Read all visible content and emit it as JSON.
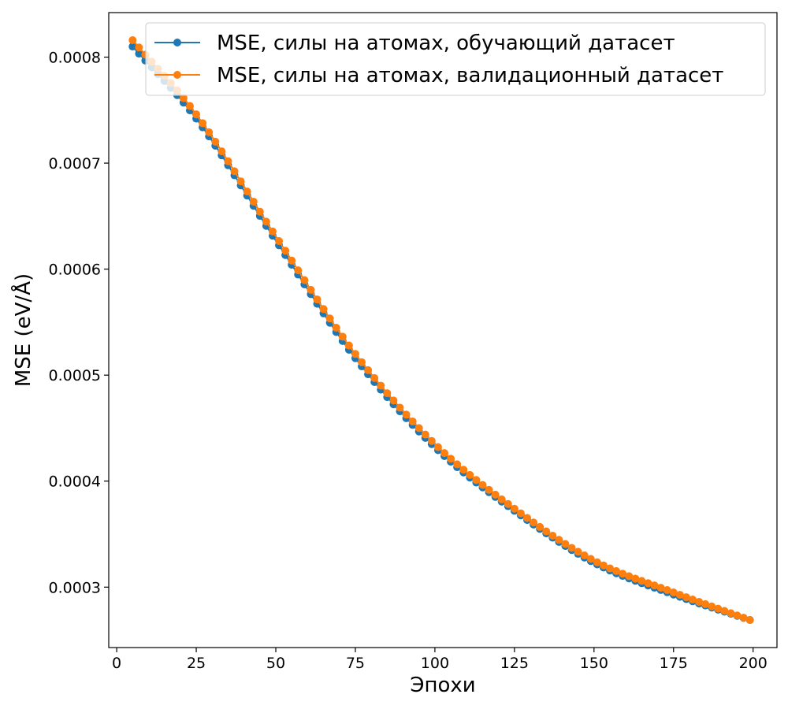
{
  "chart_data": {
    "type": "line",
    "title": "",
    "xlabel": "Эпохи",
    "ylabel": "MSE (eV/Å)",
    "xlim": [
      -2.5,
      207.5
    ],
    "ylim": [
      0.000243,
      0.000842
    ],
    "xticks": [
      0,
      25,
      50,
      75,
      100,
      125,
      150,
      175,
      200
    ],
    "yticks": [
      0.0003,
      0.0004,
      0.0005,
      0.0006,
      0.0007,
      0.0008
    ],
    "ytick_labels": [
      "0.0003",
      "0.0004",
      "0.0005",
      "0.0006",
      "0.0007",
      "0.0008"
    ],
    "grid": false,
    "legend_position": "top-right",
    "x_start": 5,
    "x_end": 199,
    "x_step": 2,
    "series": [
      {
        "name": "MSE, силы на атомах, обучающий датасет",
        "color": "#1f77b4",
        "anchors": [
          [
            5,
            0.00081
          ],
          [
            25,
            0.000742
          ],
          [
            50,
            0.000627
          ],
          [
            75,
            0.000516
          ],
          [
            100,
            0.000432
          ],
          [
            125,
            0.000372
          ],
          [
            150,
            0.000323
          ],
          [
            175,
            0.000293
          ],
          [
            199,
            0.000269
          ]
        ]
      },
      {
        "name": "MSE, силы на атомах, валидационный датасет",
        "color": "#ff7f0e",
        "anchors": [
          [
            5,
            0.000816
          ],
          [
            25,
            0.000746
          ],
          [
            50,
            0.000631
          ],
          [
            75,
            0.00052
          ],
          [
            100,
            0.000435
          ],
          [
            125,
            0.000374
          ],
          [
            150,
            0.000325
          ],
          [
            175,
            0.000295
          ],
          [
            199,
            0.000269
          ]
        ]
      }
    ]
  }
}
